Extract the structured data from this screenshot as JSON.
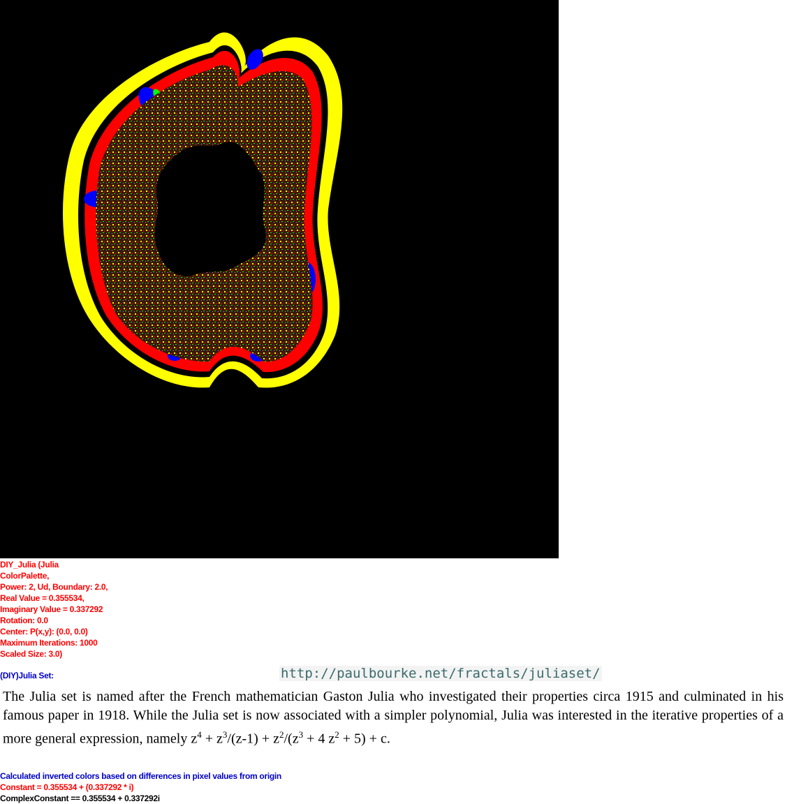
{
  "fractal": {
    "image_alt": "Julia set fractal render",
    "background": "#000000",
    "colors": {
      "outer": "#ffff00",
      "red": "#ff0000",
      "blue": "#0000ff",
      "green": "#00ff00",
      "black": "#000000"
    }
  },
  "params": [
    "DIY_Julia (Julia",
    "ColorPalette,",
    "Power: 2, Ud, Boundary: 2.0,",
    "Real Value = 0.355534,",
    "Imaginary Value = 0.337292",
    "Rotation: 0.0",
    "Center: P(x,y): (0.0, 0.0)",
    "Maximum Iterations: 1000",
    "Scaled Size: 3.0)"
  ],
  "set_label": "(DIY)Julia Set:",
  "url": "http://paulbourke.net/fractals/juliaset/",
  "description": {
    "text": "The Julia set is named after the French mathematician Gaston Julia who investigated their properties circa 1915 and culminated in his famous paper in 1918. While the Julia set is now associated with a simpler polynomial, Julia was interested in the iterative properties of a more general expression, namely ",
    "z": "z",
    "exp4": "4",
    "plus1": " + z",
    "exp3": "3",
    "frac1": "/(z-1) + z",
    "exp2": "2",
    "frac2": "/(z",
    "exp3b": "3",
    "mid": " + 4 z",
    "exp2b": "2",
    "end": " + 5) + c."
  },
  "calc_note": "Calculated inverted colors based on differences in pixel values from origin",
  "constant_line": "Constant = 0.355534 + (0.337292 * i)",
  "complex_constant_line": "ComplexConstant == 0.355534 + 0.337292i"
}
